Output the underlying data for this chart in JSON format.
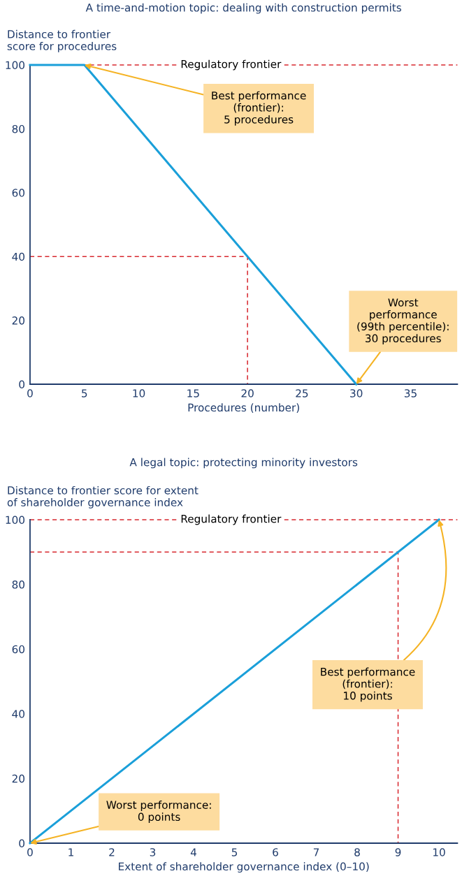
{
  "chart_data": [
    {
      "type": "line",
      "title": "A time-and-motion topic: dealing with construction permits",
      "ylabel": "Distance to frontier\nscore for procedures",
      "xlabel": "Procedures (number)",
      "xlim": [
        0,
        39.3
      ],
      "xticks": [
        0,
        5,
        10,
        15,
        20,
        25,
        30,
        35
      ],
      "ylim": [
        0,
        100
      ],
      "yticks": [
        0,
        20,
        40,
        60,
        80,
        100
      ],
      "series": [
        {
          "color": "#1a9fd9",
          "x": [
            0,
            5,
            30
          ],
          "values": [
            100,
            100,
            0
          ],
          "line_style": "solid"
        },
        {
          "color": "#d7282f",
          "x": [
            0,
            20,
            20
          ],
          "values": [
            40,
            40,
            0
          ],
          "line_style": "dashed"
        }
      ],
      "ref_lines": [
        {
          "axis": "y",
          "value": 100,
          "label": "Regulatory frontier",
          "color": "#d7282f",
          "line_style": "dashed"
        }
      ],
      "annotations": [
        {
          "text": "Best performance\n(frontier):\n5 procedures",
          "x": 5,
          "y": 100
        },
        {
          "text": "Worst\nperformance\n(99th percentile):\n30 procedures",
          "x": 30,
          "y": 0
        }
      ]
    },
    {
      "type": "line",
      "title": "A legal topic: protecting minority investors",
      "ylabel": "Distance to frontier score for extent\nof shareholder governance index",
      "xlabel": "Extent of shareholder governance index (0–10)",
      "xlim": [
        0,
        10.45
      ],
      "xticks": [
        0,
        1,
        2,
        3,
        4,
        5,
        6,
        7,
        8,
        9,
        10
      ],
      "ylim": [
        0,
        100
      ],
      "yticks": [
        0,
        20,
        40,
        60,
        80,
        100
      ],
      "series": [
        {
          "color": "#1a9fd9",
          "x": [
            0,
            10
          ],
          "values": [
            0,
            100
          ],
          "line_style": "solid"
        },
        {
          "color": "#d7282f",
          "x": [
            0,
            9,
            9
          ],
          "values": [
            90,
            90,
            0
          ],
          "line_style": "dashed"
        }
      ],
      "ref_lines": [
        {
          "axis": "y",
          "value": 100,
          "label": "Regulatory frontier",
          "color": "#d7282f",
          "line_style": "dashed"
        }
      ],
      "annotations": [
        {
          "text": "Best performance\n(frontier):\n10 points",
          "x": 10,
          "y": 100
        },
        {
          "text": "Worst performance:\n0 points",
          "x": 0,
          "y": 0
        }
      ]
    }
  ]
}
